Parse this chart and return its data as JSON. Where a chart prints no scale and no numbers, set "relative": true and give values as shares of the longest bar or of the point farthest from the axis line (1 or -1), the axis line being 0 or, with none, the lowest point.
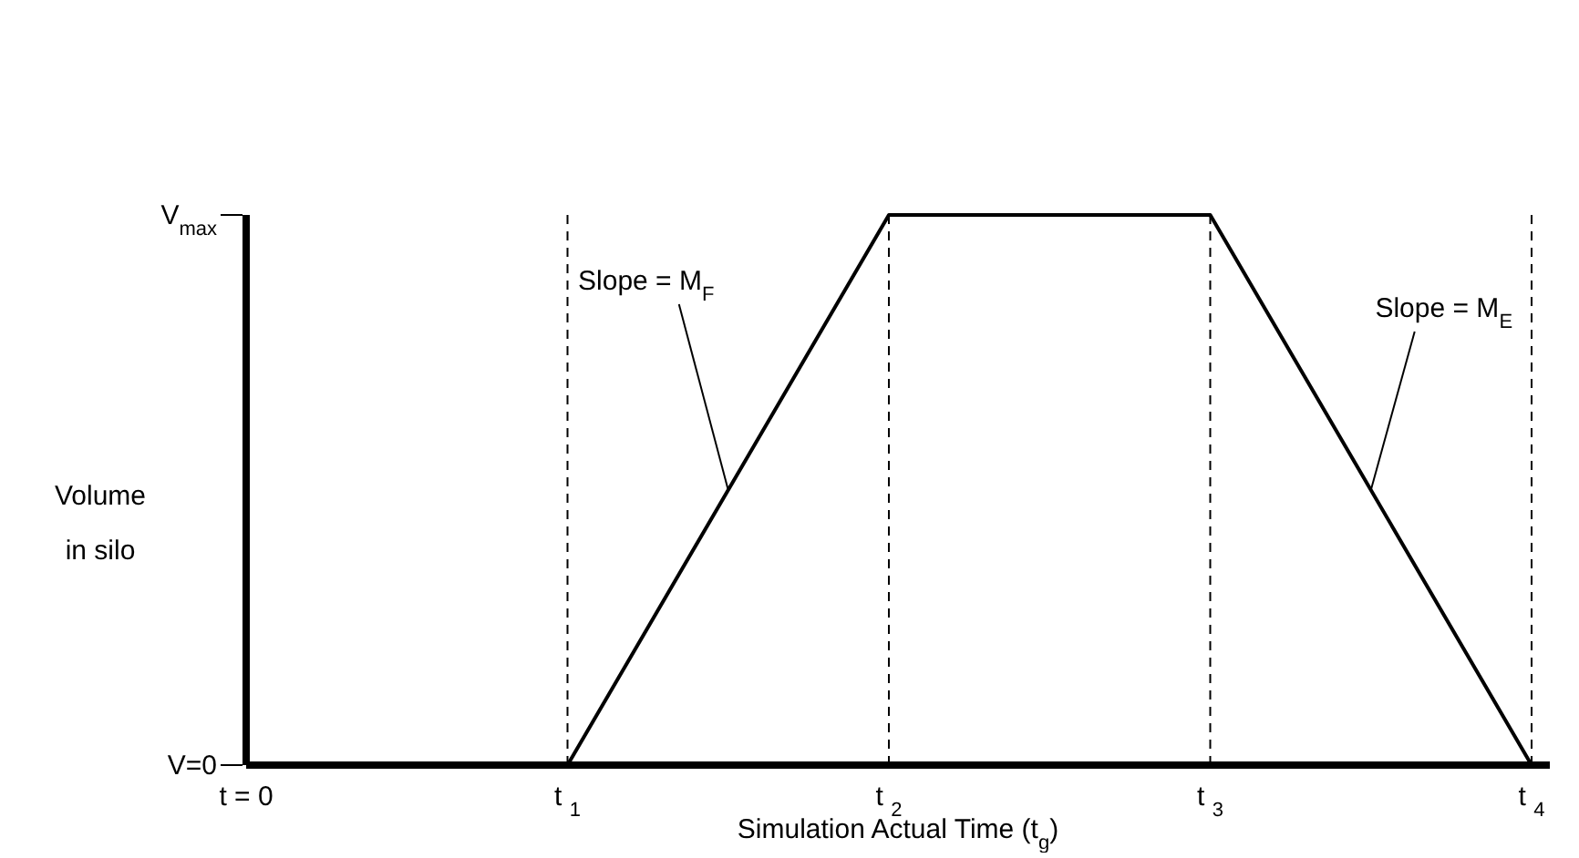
{
  "chart_data": {
    "type": "line",
    "xlabel": "Simulation Actual Time (t$_{g}$)",
    "ylabel": "Volume in silo",
    "categories": [
      "t = 0",
      "t $_{1}$",
      "t $_{2}$",
      "t $_{3}$",
      "t $_{4}$"
    ],
    "series": [
      {
        "color": "#000000",
        "values": [
          null,
          0,
          1,
          1,
          0
        ]
      }
    ],
    "relative": true,
    "ref_lines": [
      {
        "axis": "x",
        "value": "t $_{1}$",
        "line_style": "dashed",
        "color": "#000000"
      },
      {
        "axis": "x",
        "value": "t $_{2}$",
        "line_style": "dashed",
        "color": "#000000"
      },
      {
        "axis": "x",
        "value": "t $_{3}$",
        "line_style": "dashed",
        "color": "#000000"
      },
      {
        "axis": "x",
        "value": "t $_{4}$",
        "line_style": "dashed",
        "color": "#000000"
      }
    ],
    "annotations": [
      "V=0",
      "V$_{max}$",
      "Slope = M$_{F}$",
      "Slope = M$_{E}$"
    ],
    "grid": false,
    "legend": false,
    "marker": "none",
    "line_style": "solid"
  }
}
